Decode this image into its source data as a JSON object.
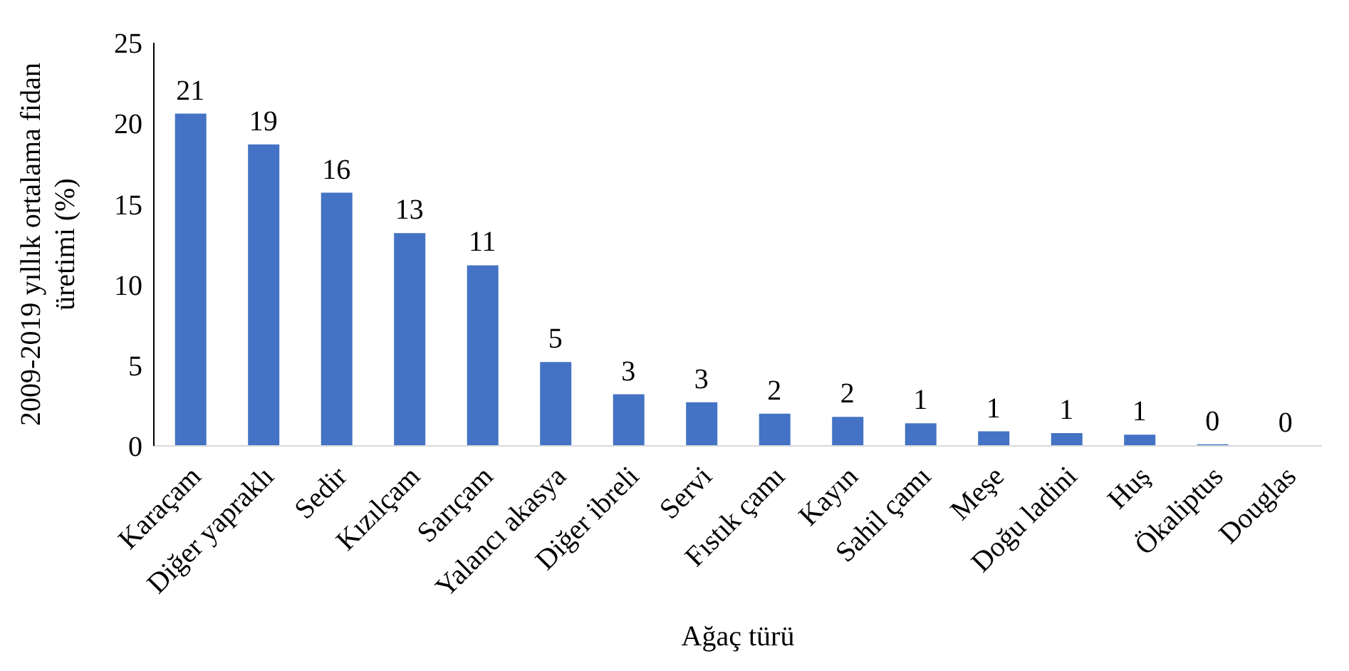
{
  "chart_data": {
    "type": "bar",
    "xlabel": "Ağaç türü",
    "ylabel": "2009-2019 yıllık ortalama fidan üretimi (%)",
    "categories": [
      "Karaçam",
      "Diğer yapraklı",
      "Sedir",
      "Kızılçam",
      "Sarıçam",
      "Yalancı akasya",
      "Diğer ibreli",
      "Servi",
      "Fıstık çamı",
      "Kayın",
      "Sahil çamı",
      "Meşe",
      "Doğu ladini",
      "Huş",
      "Ökaliptus",
      "Douglas"
    ],
    "values": [
      20.6,
      18.7,
      15.7,
      13.2,
      11.2,
      5.2,
      3.2,
      2.7,
      2.0,
      1.8,
      1.4,
      0.9,
      0.8,
      0.7,
      0.1,
      0.0
    ],
    "value_labels": [
      "21",
      "19",
      "16",
      "13",
      "11",
      "5",
      "3",
      "3",
      "2",
      "2",
      "1",
      "1",
      "1",
      "1",
      "0",
      "0"
    ],
    "color": "#4472c4",
    "ylim": [
      0,
      25
    ],
    "yticks": [
      0,
      5,
      10,
      15,
      20,
      25
    ],
    "grid": false,
    "legend": false
  }
}
